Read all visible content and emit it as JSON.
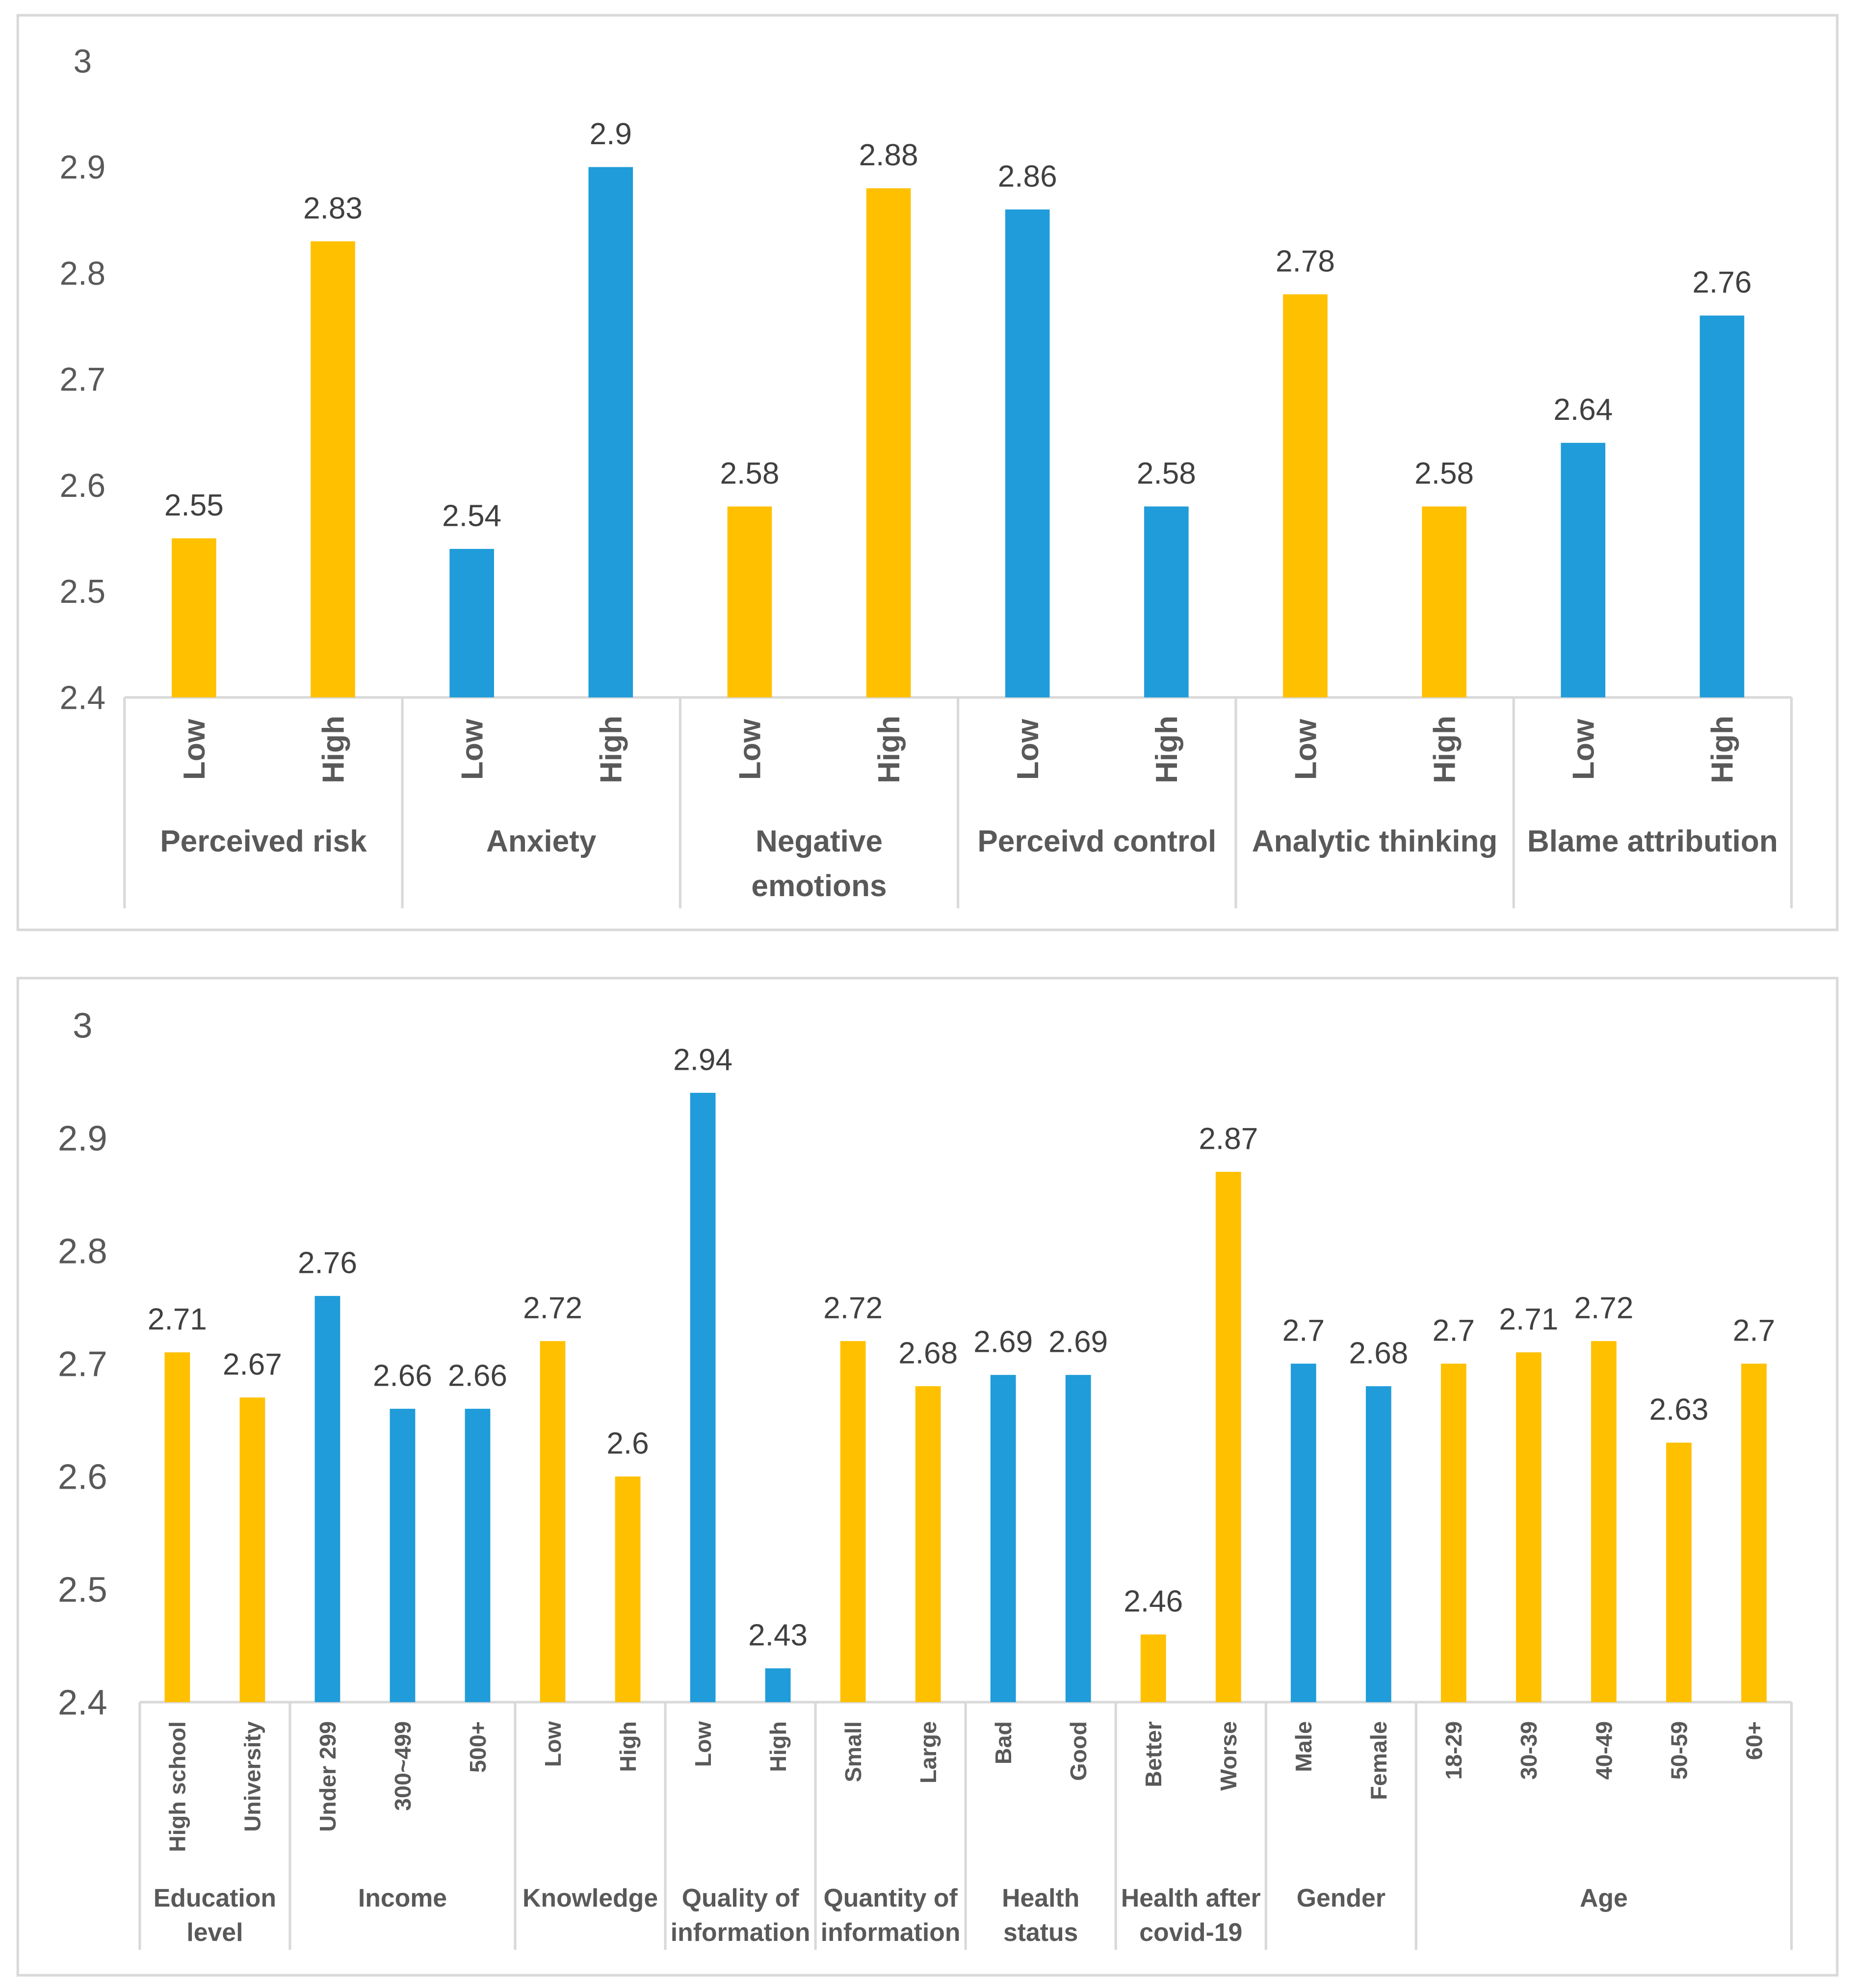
{
  "chart_data": [
    {
      "type": "bar",
      "title": "",
      "xlabel": "",
      "ylabel": "",
      "ylim": [
        2.4,
        3
      ],
      "yticks": [
        "3",
        "2.9",
        "2.8",
        "2.7",
        "2.6",
        "2.5",
        "2.4"
      ],
      "grid": false,
      "groups": [
        {
          "name": [
            "Perceived risk"
          ],
          "color": "#FFC000",
          "categories": [
            "Low",
            "High"
          ],
          "values": [
            2.55,
            2.83
          ],
          "labels": [
            "2.55",
            "2.83"
          ]
        },
        {
          "name": [
            "Anxiety"
          ],
          "color": "#1F9CD9",
          "categories": [
            "Low",
            "High"
          ],
          "values": [
            2.54,
            2.9
          ],
          "labels": [
            "2.54",
            "2.9"
          ]
        },
        {
          "name": [
            "Negative",
            "emotions"
          ],
          "color": "#FFC000",
          "categories": [
            "Low",
            "High"
          ],
          "values": [
            2.58,
            2.88
          ],
          "labels": [
            "2.58",
            "2.88"
          ]
        },
        {
          "name": [
            "Perceivd control"
          ],
          "color": "#1F9CD9",
          "categories": [
            "Low",
            "High"
          ],
          "values": [
            2.86,
            2.58
          ],
          "labels": [
            "2.86",
            "2.58"
          ]
        },
        {
          "name": [
            "Analytic thinking"
          ],
          "color": "#FFC000",
          "categories": [
            "Low",
            "High"
          ],
          "values": [
            2.78,
            2.58
          ],
          "labels": [
            "2.78",
            "2.58"
          ]
        },
        {
          "name": [
            "Blame attribution"
          ],
          "color": "#1F9CD9",
          "categories": [
            "Low",
            "High"
          ],
          "values": [
            2.64,
            2.76
          ],
          "labels": [
            "2.64",
            "2.76"
          ]
        }
      ]
    },
    {
      "type": "bar",
      "title": "",
      "xlabel": "",
      "ylabel": "",
      "ylim": [
        2.4,
        3
      ],
      "yticks": [
        "3",
        "2.9",
        "2.8",
        "2.7",
        "2.6",
        "2.5",
        "2.4"
      ],
      "grid": false,
      "groups": [
        {
          "name": [
            "Education",
            "level"
          ],
          "color": "#FFC000",
          "categories": [
            "High school",
            "University"
          ],
          "values": [
            2.71,
            2.67
          ],
          "labels": [
            "2.71",
            "2.67"
          ]
        },
        {
          "name": [
            "Income"
          ],
          "color": "#1F9CD9",
          "categories": [
            "Under 299",
            "300~499",
            "500+"
          ],
          "values": [
            2.76,
            2.66,
            2.66
          ],
          "labels": [
            "2.76",
            "2.66",
            "2.66"
          ]
        },
        {
          "name": [
            "Knowledge"
          ],
          "color": "#FFC000",
          "categories": [
            "Low",
            "High"
          ],
          "values": [
            2.72,
            2.6
          ],
          "labels": [
            "2.72",
            "2.6"
          ]
        },
        {
          "name": [
            "Quality of",
            "information"
          ],
          "color": "#1F9CD9",
          "categories": [
            "Low",
            "High"
          ],
          "values": [
            2.94,
            2.43
          ],
          "labels": [
            "2.94",
            "2.43"
          ]
        },
        {
          "name": [
            "Quantity of",
            "information"
          ],
          "color": "#FFC000",
          "categories": [
            "Small",
            "Large"
          ],
          "values": [
            2.72,
            2.68
          ],
          "labels": [
            "2.72",
            "2.68"
          ]
        },
        {
          "name": [
            "Health",
            "status"
          ],
          "color": "#1F9CD9",
          "categories": [
            "Bad",
            "Good"
          ],
          "values": [
            2.69,
            2.69
          ],
          "labels": [
            "2.69",
            "2.69"
          ]
        },
        {
          "name": [
            "Health after",
            "covid-19"
          ],
          "color": "#FFC000",
          "categories": [
            "Better",
            "Worse"
          ],
          "values": [
            2.46,
            2.87
          ],
          "labels": [
            "2.46",
            "2.87"
          ]
        },
        {
          "name": [
            "Gender"
          ],
          "color": "#1F9CD9",
          "categories": [
            "Male",
            "Female"
          ],
          "values": [
            2.7,
            2.68
          ],
          "labels": [
            "2.7",
            "2.68"
          ]
        },
        {
          "name": [
            "Age"
          ],
          "color": "#FFC000",
          "categories": [
            "18-29",
            "30-39",
            "40-49",
            "50-59",
            "60+"
          ],
          "values": [
            2.7,
            2.71,
            2.72,
            2.63,
            2.7
          ],
          "labels": [
            "2.7",
            "2.71",
            "2.72",
            "2.63",
            "2.7"
          ]
        }
      ]
    }
  ]
}
